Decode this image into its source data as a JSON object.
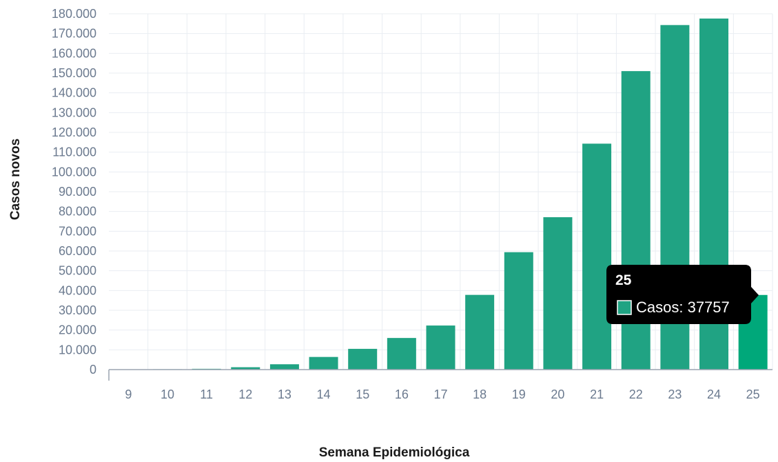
{
  "chart_data": {
    "type": "bar",
    "xlabel": "Semana Epidemiológica",
    "ylabel": "Casos novos",
    "categories": [
      "9",
      "10",
      "11",
      "12",
      "13",
      "14",
      "15",
      "16",
      "17",
      "18",
      "19",
      "20",
      "21",
      "22",
      "23",
      "24",
      "25"
    ],
    "series": [
      {
        "name": "Casos",
        "values": [
          0,
          200,
          400,
          1200,
          2700,
          6400,
          10500,
          16000,
          22300,
          37800,
          59400,
          77100,
          114300,
          151000,
          174300,
          177600,
          37757
        ]
      }
    ],
    "ylim": [
      0,
      180000
    ],
    "yticks": [
      0,
      10000,
      20000,
      30000,
      40000,
      50000,
      60000,
      70000,
      80000,
      90000,
      100000,
      110000,
      120000,
      130000,
      140000,
      150000,
      160000,
      170000,
      180000
    ],
    "ytick_labels": [
      "0",
      "10.000",
      "20.000",
      "30.000",
      "40.000",
      "50.000",
      "60.000",
      "70.000",
      "80.000",
      "90.000",
      "100.000",
      "110.000",
      "120.000",
      "130.000",
      "140.000",
      "150.000",
      "160.000",
      "170.000",
      "180.000"
    ],
    "grid": true,
    "bar_color": "#20a383",
    "highlight_color": "#00a87a",
    "highlighted_category": "25"
  },
  "tooltip": {
    "title": "25",
    "label": "Casos: 37757",
    "background": "#000000",
    "swatch_color": "#20a383"
  }
}
